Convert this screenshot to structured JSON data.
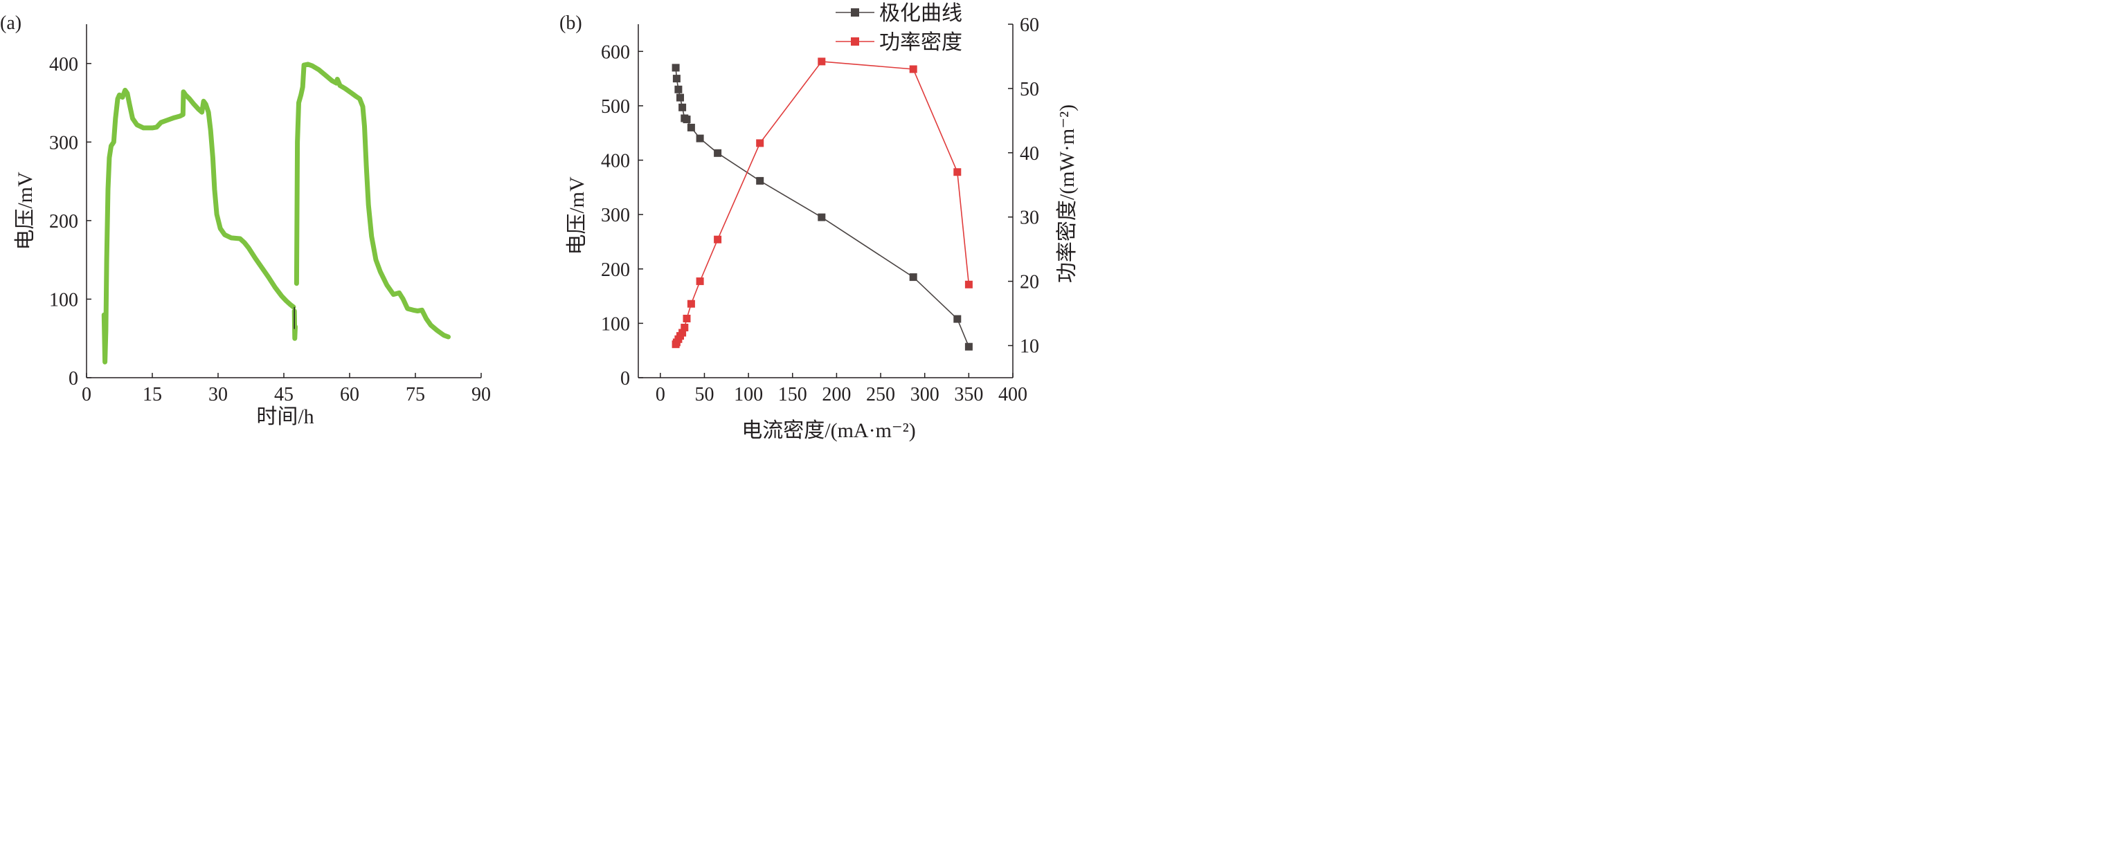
{
  "colors": {
    "axis": "#231f20",
    "green_series": "#7dc240",
    "polarization": "#4a4443",
    "power": "#e03c3c"
  },
  "chart_data": [
    {
      "panel_label": "(a)",
      "type": "line",
      "xlabel": "时间/h",
      "ylabel": "电压/mV",
      "xlim": [
        0,
        90
      ],
      "ylim": [
        0,
        450
      ],
      "xticks": [
        0,
        15,
        30,
        45,
        60,
        75,
        90
      ],
      "yticks": [
        0,
        100,
        200,
        300,
        400
      ],
      "grid": false,
      "series": [
        {
          "color": "#7dc240",
          "segments": [
            [
              [
                4,
                80
              ],
              [
                4.2,
                20
              ],
              [
                4.4,
                60
              ],
              [
                4.6,
                150
              ],
              [
                4.9,
                240
              ],
              [
                5.2,
                280
              ],
              [
                5.6,
                295
              ],
              [
                6.2,
                300
              ],
              [
                6.6,
                330
              ],
              [
                7.1,
                355
              ],
              [
                7.5,
                360
              ],
              [
                8.2,
                357
              ],
              [
                8.8,
                366
              ],
              [
                9.3,
                362
              ],
              [
                9.8,
                348
              ],
              [
                10.5,
                330
              ],
              [
                11.5,
                322
              ],
              [
                13,
                318
              ],
              [
                15,
                318
              ],
              [
                16,
                319
              ],
              [
                17,
                325
              ],
              [
                18.5,
                328
              ],
              [
                20,
                331
              ],
              [
                21.3,
                333
              ],
              [
                22,
                335
              ],
              [
                22.1,
                364
              ],
              [
                22.6,
                360
              ],
              [
                23.5,
                355
              ],
              [
                24.5,
                348
              ],
              [
                25.5,
                342
              ],
              [
                26.3,
                338
              ],
              [
                26.7,
                352
              ],
              [
                27.2,
                348
              ],
              [
                27.8,
                338
              ],
              [
                28.3,
                315
              ],
              [
                28.8,
                280
              ],
              [
                29.2,
                240
              ],
              [
                29.7,
                208
              ],
              [
                30.5,
                190
              ],
              [
                31.5,
                182
              ],
              [
                33,
                178
              ],
              [
                35,
                177
              ],
              [
                36,
                172
              ],
              [
                37,
                165
              ],
              [
                38.5,
                152
              ],
              [
                40,
                140
              ],
              [
                41.5,
                128
              ],
              [
                43,
                115
              ],
              [
                44.5,
                104
              ],
              [
                45.5,
                98
              ],
              [
                46.5,
                93
              ],
              [
                47.2,
                90
              ]
            ],
            [
              [
                47.4,
                85
              ],
              [
                47.5,
                50
              ],
              [
                47.6,
                65
              ]
            ],
            [
              [
                47.9,
                120
              ],
              [
                48.1,
                300
              ],
              [
                48.4,
                350
              ],
              [
                48.9,
                360
              ],
              [
                49.3,
                370
              ],
              [
                49.6,
                398
              ],
              [
                50.5,
                399
              ],
              [
                51.5,
                397
              ],
              [
                53,
                392
              ],
              [
                54.5,
                385
              ],
              [
                56,
                378
              ],
              [
                57,
                375
              ],
              [
                57.2,
                380
              ],
              [
                57.8,
                372
              ],
              [
                59,
                368
              ],
              [
                60.5,
                362
              ],
              [
                61.5,
                358
              ],
              [
                62.3,
                355
              ],
              [
                63,
                345
              ],
              [
                63.4,
                320
              ],
              [
                63.8,
                270
              ],
              [
                64.3,
                220
              ],
              [
                65,
                180
              ],
              [
                66,
                150
              ],
              [
                67,
                135
              ],
              [
                68.5,
                118
              ],
              [
                70,
                106
              ],
              [
                71.3,
                108
              ],
              [
                72.2,
                100
              ],
              [
                73.2,
                88
              ],
              [
                74.5,
                86
              ],
              [
                75.5,
                85
              ],
              [
                76.5,
                86
              ],
              [
                77.5,
                75
              ],
              [
                78.5,
                67
              ],
              [
                80,
                60
              ],
              [
                81.5,
                54
              ],
              [
                82.5,
                52
              ]
            ]
          ]
        }
      ]
    },
    {
      "panel_label": "(b)",
      "type": "line",
      "xlabel": "电流密度/(mA·m⁻²)",
      "ylabel": "电压/mV",
      "y2label": "功率密度/(mW·m⁻²)",
      "xlim": [
        -25,
        400
      ],
      "ylim": [
        0,
        650
      ],
      "y2lim": [
        5,
        60
      ],
      "xticks": [
        0,
        50,
        100,
        150,
        200,
        250,
        300,
        350,
        400
      ],
      "yticks": [
        0,
        100,
        200,
        300,
        400,
        500,
        600
      ],
      "y2ticks": [
        10,
        20,
        30,
        40,
        50,
        60
      ],
      "grid": false,
      "legend_position": "top",
      "series": [
        {
          "name": "极化曲线",
          "axis": "left",
          "color": "#4a4443",
          "x": [
            17.5,
            18.5,
            20.5,
            22.5,
            25,
            27.5,
            30,
            35,
            45,
            65,
            113,
            183,
            287,
            337,
            350
          ],
          "y": [
            570,
            550,
            530,
            515,
            497,
            477,
            475,
            460,
            440,
            413,
            362,
            295,
            185,
            108,
            57
          ]
        },
        {
          "name": "功率密度",
          "axis": "right",
          "color": "#e03c3c",
          "x": [
            17.5,
            18.5,
            20.5,
            22.5,
            25,
            27.5,
            30,
            35,
            45,
            65,
            113,
            183,
            287,
            337,
            350
          ],
          "y": [
            10.2,
            10.5,
            11,
            11.5,
            12,
            12.8,
            14.2,
            16.5,
            20,
            26.5,
            41.5,
            54.2,
            53,
            37,
            19.5
          ]
        }
      ]
    }
  ]
}
